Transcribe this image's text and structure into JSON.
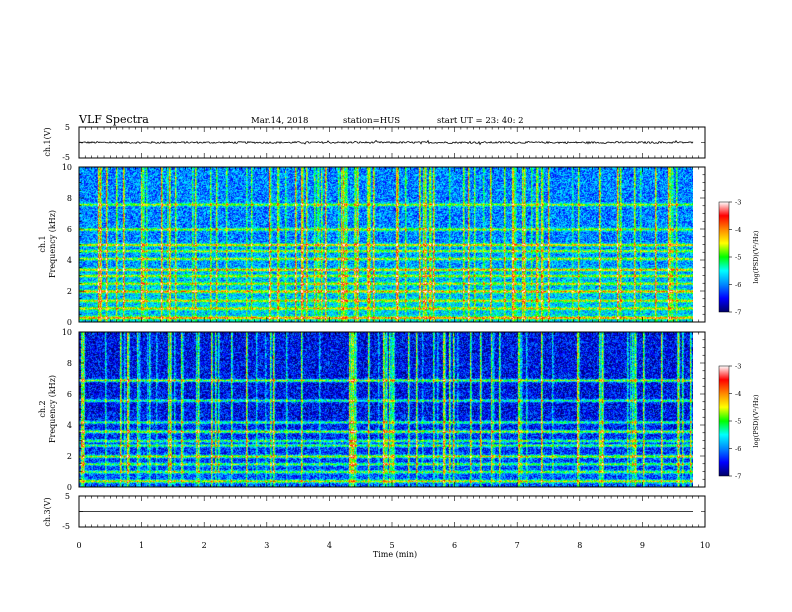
{
  "header": {
    "title": "VLF Spectra",
    "date": "Mar.14, 2018",
    "station": "station=HUS",
    "start": "start UT =  23: 40: 2"
  },
  "chart_data": [
    {
      "type": "line",
      "name": "waveform_ch1",
      "ylabel": "ch.1(V)",
      "ylim": [
        -5,
        5
      ],
      "ytick_labels": [
        "5",
        "-5"
      ],
      "xlim": [
        0,
        10
      ],
      "series": [
        {
          "baseline_value": 0.0,
          "noise_amplitude_V": 0.3
        }
      ]
    },
    {
      "type": "heatmap",
      "name": "spectrogram_ch1",
      "ylabel": "ch.1\nFrequency (kHz)",
      "ylabel_lines": [
        "ch.1",
        "Frequency (kHz)"
      ],
      "ylim": [
        0,
        10
      ],
      "ytick_labels": [
        "0",
        "2",
        "4",
        "6",
        "8",
        "10"
      ],
      "xlim": [
        0,
        9.8
      ],
      "colorbar": {
        "label": "log(PSD)(V²/Hz)",
        "range": [
          -7,
          -3
        ],
        "tick_labels": [
          "-3",
          "-4",
          "-5",
          "-6",
          "-7"
        ]
      },
      "bands_khz": [
        0.3,
        0.9,
        1.4,
        2.0,
        2.5,
        3.0,
        3.4,
        4.1,
        4.6,
        5.0,
        6.0,
        7.6
      ],
      "background_level": -6.0
    },
    {
      "type": "heatmap",
      "name": "spectrogram_ch2",
      "ylabel_lines": [
        "ch.2",
        "Frequency (kHz)"
      ],
      "ylim": [
        0,
        10
      ],
      "ytick_labels": [
        "0",
        "2",
        "4",
        "6",
        "8",
        "10"
      ],
      "xlim": [
        0,
        9.8
      ],
      "colorbar": {
        "label": "log(PSD)(V²/Hz)",
        "range": [
          -7,
          -3
        ],
        "tick_labels": [
          "-3",
          "-4",
          "-5",
          "-6",
          "-7"
        ]
      },
      "bands_khz": [
        0.4,
        1.0,
        1.5,
        2.0,
        2.7,
        3.0,
        3.6,
        4.2,
        5.6,
        6.9
      ],
      "background_level": -6.5
    },
    {
      "type": "line",
      "name": "waveform_ch3",
      "ylabel": "ch.3(V)",
      "ylim": [
        -5,
        5
      ],
      "ytick_labels": [
        "5",
        "-5"
      ],
      "xlim": [
        0,
        10
      ],
      "series": [
        {
          "baseline_value": 0.0
        }
      ]
    }
  ],
  "xaxis": {
    "label": "Time (min)",
    "range": [
      0,
      10
    ],
    "tick_labels": [
      "0",
      "1",
      "2",
      "3",
      "4",
      "5",
      "6",
      "7",
      "8",
      "9",
      "10"
    ]
  },
  "colormap": [
    "#000066",
    "#0000ff",
    "#0088ff",
    "#00ffff",
    "#00ff00",
    "#ffff00",
    "#ff8800",
    "#ff0000",
    "#ffffff"
  ]
}
